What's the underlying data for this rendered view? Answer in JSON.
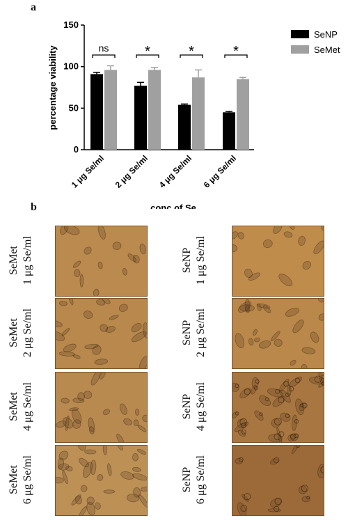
{
  "panels": {
    "a": "a",
    "b": "b"
  },
  "chart_data": {
    "type": "bar",
    "ylabel": "percentage viability",
    "xlabel": "conc of Se",
    "ylim": [
      0,
      150
    ],
    "yticks": [
      0,
      50,
      100,
      150
    ],
    "categories": [
      "1 μg Se/ml",
      "2 μg Se/ml",
      "4 μg Se/ml",
      "6 μg Se/ml"
    ],
    "series": [
      {
        "name": "SeNP",
        "color": "#000000",
        "values": [
          91,
          77,
          54,
          45
        ],
        "errors": [
          2,
          4,
          1,
          1
        ]
      },
      {
        "name": "SeMet",
        "color": "#a0a0a0",
        "values": [
          96,
          96,
          87,
          85
        ],
        "errors": [
          5,
          3,
          9,
          2
        ]
      }
    ],
    "significance": [
      "ns",
      "*",
      "*",
      "*"
    ],
    "legend_position": "top-right",
    "grid": false
  },
  "micrographs": {
    "left_column": [
      {
        "line1": "SeMet",
        "line2": "1 μg Se/ml",
        "tone": "#bb8a4e",
        "cells": "sparse"
      },
      {
        "line1": "SeMet",
        "line2": "2 μg Se/ml",
        "tone": "#b8884c",
        "cells": "medium"
      },
      {
        "line1": "SeMet",
        "line2": "4 μg Se/ml",
        "tone": "#b98a50",
        "cells": "medium"
      },
      {
        "line1": "SeMet",
        "line2": "6 μg Se/ml",
        "tone": "#bd9056",
        "cells": "dense"
      }
    ],
    "right_column": [
      {
        "line1": "SeNP",
        "line2": "1 μg Se/ml",
        "tone": "#bf8c4c",
        "cells": "sparse"
      },
      {
        "line1": "SeNP",
        "line2": "2 μg Se/ml",
        "tone": "#ba884a",
        "cells": "medium"
      },
      {
        "line1": "SeNP",
        "line2": "4 μg Se/ml",
        "tone": "#a87640",
        "cells": "clustered"
      },
      {
        "line1": "SeNP",
        "line2": "6 μg Se/ml",
        "tone": "#9c6a38",
        "cells": "few"
      }
    ]
  }
}
